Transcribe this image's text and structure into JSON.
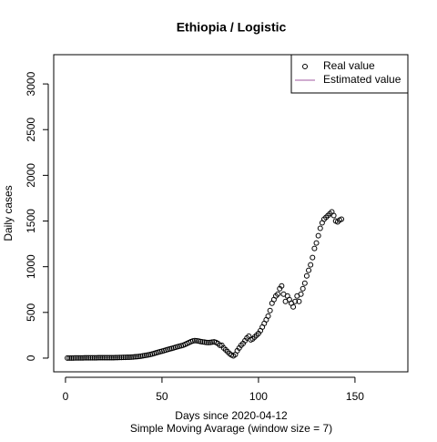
{
  "chart_data": {
    "type": "scatter",
    "title": "Ethiopia / Logistic",
    "x_label": "Days since 2020-04-12",
    "subtitle": "Simple Moving Avarage (window size = 7)",
    "y_label": "Daily cases",
    "x": [
      1,
      2,
      3,
      4,
      5,
      6,
      7,
      8,
      9,
      10,
      11,
      12,
      13,
      14,
      15,
      16,
      17,
      18,
      19,
      20,
      21,
      22,
      23,
      24,
      25,
      26,
      27,
      28,
      29,
      30,
      31,
      32,
      33,
      34,
      35,
      36,
      37,
      38,
      39,
      40,
      41,
      42,
      43,
      44,
      45,
      46,
      47,
      48,
      49,
      50,
      51,
      52,
      53,
      54,
      55,
      56,
      57,
      58,
      59,
      60,
      61,
      62,
      63,
      64,
      65,
      66,
      67,
      68,
      69,
      70,
      71,
      72,
      73,
      74,
      75,
      76,
      77,
      78,
      79,
      80,
      81,
      82,
      83,
      84,
      85,
      86,
      87,
      88,
      89,
      90,
      91,
      92,
      93,
      94,
      95,
      96,
      97,
      98,
      99,
      100,
      101,
      102,
      103,
      104,
      105,
      106,
      107,
      108,
      109,
      110,
      111,
      112,
      113,
      114,
      115,
      116,
      117,
      118,
      119,
      120,
      121,
      122,
      123,
      124,
      125,
      126,
      127,
      128,
      129,
      130,
      131,
      132,
      133,
      134,
      135,
      136,
      137,
      138,
      139,
      140,
      141,
      142,
      143
    ],
    "series": [
      {
        "name": "Real value",
        "color": "#000000",
        "values": [
          1,
          1,
          1,
          1,
          2,
          2,
          2,
          2,
          2,
          3,
          3,
          3,
          3,
          3,
          3,
          3,
          4,
          4,
          4,
          4,
          4,
          5,
          5,
          5,
          5,
          6,
          6,
          7,
          7,
          8,
          8,
          9,
          10,
          11,
          12,
          14,
          16,
          18,
          21,
          24,
          28,
          32,
          36,
          41,
          46,
          52,
          58,
          64,
          70,
          76,
          82,
          88,
          94,
          100,
          106,
          112,
          118,
          124,
          130,
          136,
          142,
          150,
          160,
          170,
          180,
          188,
          192,
          190,
          186,
          182,
          178,
          175,
          172,
          170,
          172,
          175,
          178,
          172,
          160,
          140,
          140,
          110,
          90,
          70,
          50,
          35,
          25,
          40,
          80,
          110,
          140,
          160,
          190,
          220,
          240,
          200,
          210,
          230,
          250,
          270,
          300,
          340,
          380,
          420,
          460,
          520,
          600,
          640,
          680,
          700,
          760,
          790,
          700,
          620,
          680,
          640,
          600,
          560,
          620,
          680,
          620,
          700,
          760,
          820,
          900,
          960,
          1020,
          1100,
          1200,
          1260,
          1340,
          1420,
          1480,
          1520,
          1540,
          1560,
          1580,
          1600,
          1560,
          1500,
          1490,
          1510,
          1520
        ]
      },
      {
        "name": "Estimated value",
        "color": "#a05aa0",
        "values": [
          null,
          null,
          null,
          null,
          null,
          null,
          null,
          null,
          null,
          null,
          null,
          null,
          null,
          null,
          null,
          null,
          null,
          null,
          null,
          null,
          null,
          null,
          null,
          null,
          null,
          null,
          null,
          null,
          null,
          null,
          null,
          null,
          null,
          null,
          null,
          null,
          null,
          null,
          null,
          null,
          null,
          null,
          null,
          null,
          null,
          null,
          null,
          null,
          null,
          null,
          null,
          null,
          null,
          null,
          null,
          null,
          null,
          null,
          null,
          null,
          null,
          null,
          null,
          null,
          null,
          null,
          null,
          null,
          null,
          null,
          null,
          null,
          null,
          null,
          null,
          null,
          null,
          null,
          null,
          null,
          null,
          null,
          null,
          null,
          null,
          null,
          null,
          null,
          null,
          null,
          null,
          null,
          null,
          null,
          null,
          null,
          null,
          null,
          null,
          null,
          null,
          null,
          null,
          null,
          null,
          null,
          null,
          null,
          null,
          null,
          null,
          null,
          null,
          null,
          null,
          null,
          null,
          null,
          null,
          null,
          null,
          null,
          null,
          null,
          null,
          null,
          null,
          null,
          null,
          null,
          null,
          null,
          null,
          null,
          null,
          null,
          null,
          null,
          null,
          null,
          null,
          null,
          null
        ]
      }
    ],
    "xlim": [
      -6.1,
      177.4
    ],
    "ylim": [
      -150,
      3320
    ],
    "xticks": [
      0,
      50,
      100,
      150
    ],
    "yticks": [
      0,
      500,
      1000,
      1500,
      2000,
      2500,
      3000
    ],
    "legend": "top-right"
  }
}
